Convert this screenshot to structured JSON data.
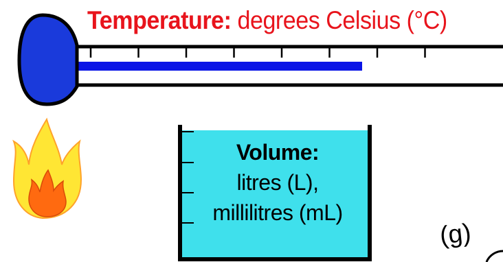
{
  "temperature": {
    "label_bold": "Temperature:",
    "label_rest": " degrees Celsius (°C)",
    "fill_level": 0.67,
    "tick_count": 8
  },
  "volume": {
    "heading": "Volume:",
    "line1": "litres (L),",
    "line2": "millilitres (mL)"
  },
  "mass": {
    "label": "(g)"
  },
  "colors": {
    "label_red": "#e8141c",
    "bulb_blue": "#1a3adb",
    "mercury_blue": "#0a14e6",
    "liquid_cyan": "#3fe0ec",
    "flame_yellow": "#ffe634",
    "flame_orange": "#ff6a10",
    "outline": "#000000"
  },
  "icons": {
    "flame": "flame-icon",
    "thermometer": "thermometer-icon",
    "beaker": "beaker-icon"
  }
}
